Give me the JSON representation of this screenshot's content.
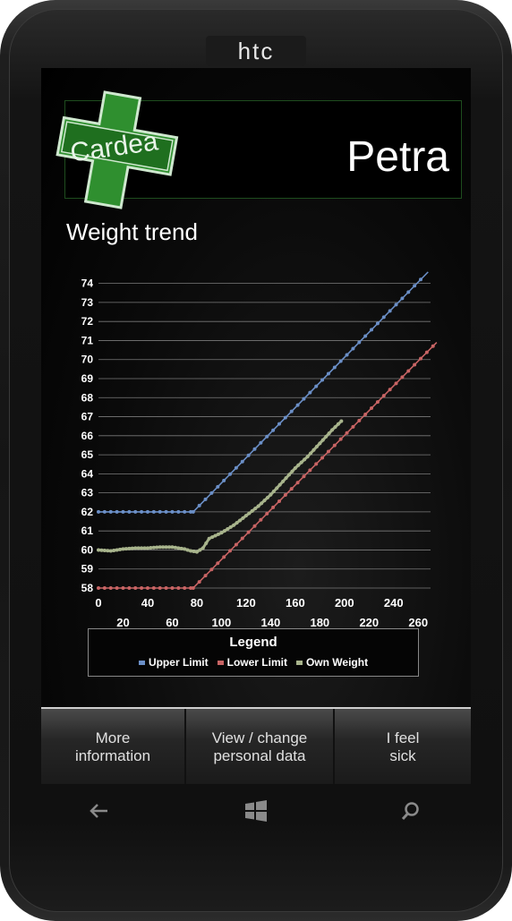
{
  "device": {
    "brand": "htc"
  },
  "header": {
    "logo_text": "Cardea",
    "user_name": "Petra"
  },
  "page": {
    "title": "Weight trend"
  },
  "chart_data": {
    "type": "line",
    "title": "",
    "xlabel": "",
    "ylabel": "",
    "xlim": [
      0,
      270
    ],
    "ylim": [
      58,
      74.5
    ],
    "x_ticks_upper": [
      "0",
      "40",
      "80",
      "120",
      "160",
      "200",
      "240"
    ],
    "x_ticks_lower": [
      "20",
      "60",
      "100",
      "140",
      "180",
      "220",
      "260"
    ],
    "y_ticks": [
      "58",
      "59",
      "60",
      "61",
      "62",
      "63",
      "64",
      "65",
      "66",
      "67",
      "68",
      "69",
      "70",
      "71",
      "72",
      "73",
      "74"
    ],
    "grid": true,
    "legend_title": "Legend",
    "series": [
      {
        "name": "Upper Limit",
        "color": "#6b8fc7",
        "points": [
          [
            0,
            62
          ],
          [
            77,
            62
          ],
          [
            268,
            74.6
          ]
        ]
      },
      {
        "name": "Lower Limit",
        "color": "#c86464",
        "points": [
          [
            0,
            58
          ],
          [
            77,
            58
          ],
          [
            275,
            70.9
          ]
        ]
      },
      {
        "name": "Own Weight",
        "color": "#a8b48c",
        "points": [
          [
            0,
            60.0
          ],
          [
            10,
            59.95
          ],
          [
            20,
            60.05
          ],
          [
            30,
            60.1
          ],
          [
            40,
            60.1
          ],
          [
            50,
            60.15
          ],
          [
            60,
            60.15
          ],
          [
            70,
            60.05
          ],
          [
            75,
            59.95
          ],
          [
            80,
            59.9
          ],
          [
            85,
            60.1
          ],
          [
            90,
            60.6
          ],
          [
            100,
            60.9
          ],
          [
            110,
            61.3
          ],
          [
            120,
            61.8
          ],
          [
            130,
            62.3
          ],
          [
            140,
            62.9
          ],
          [
            150,
            63.6
          ],
          [
            160,
            64.3
          ],
          [
            170,
            64.9
          ],
          [
            180,
            65.6
          ],
          [
            190,
            66.3
          ],
          [
            198,
            66.8
          ]
        ]
      }
    ]
  },
  "app_bar": {
    "buttons": [
      {
        "line1": "More",
        "line2": "information"
      },
      {
        "line1": "View / change",
        "line2": "personal data"
      },
      {
        "line1": "I feel",
        "line2": "sick"
      }
    ]
  },
  "hardware": {
    "back": "back-icon",
    "start": "windows-icon",
    "search": "search-icon"
  }
}
